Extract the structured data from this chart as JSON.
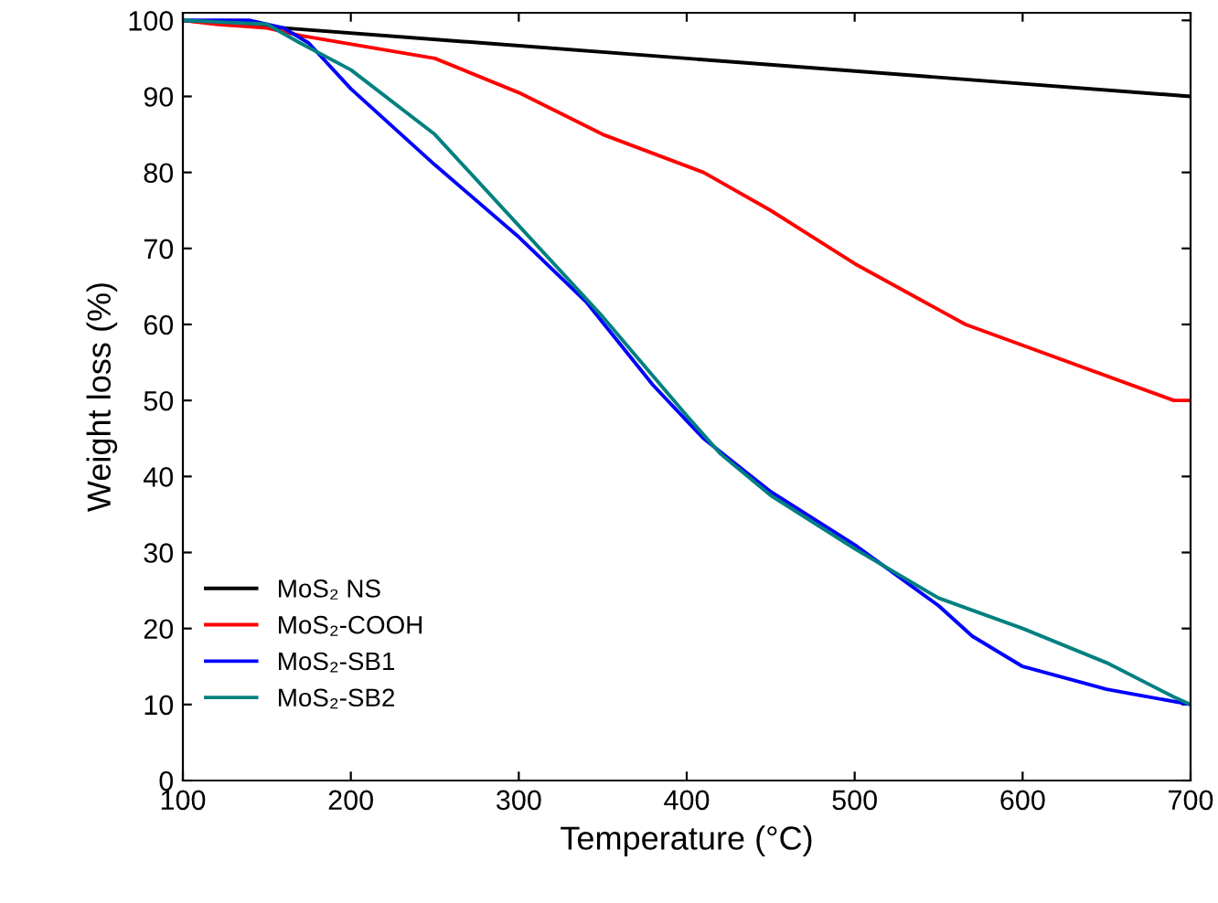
{
  "chart_data": {
    "type": "line",
    "xlabel": "Temperature (°C)",
    "ylabel": "Weight loss (%)",
    "xlim": [
      100,
      700
    ],
    "ylim": [
      0,
      101
    ],
    "xticks": [
      100,
      200,
      300,
      400,
      500,
      600,
      700
    ],
    "yticks": [
      0,
      10,
      20,
      30,
      40,
      50,
      60,
      70,
      80,
      90,
      100
    ],
    "grid": false,
    "legend": "lower left",
    "line_style": "solid",
    "marker": "none",
    "series": [
      {
        "name": "MoS₂ NS",
        "color": "#000000",
        "x": [
          100,
          700
        ],
        "values": [
          100,
          90
        ]
      },
      {
        "name": "MoS₂-COOH",
        "color": "#ff0000",
        "x": [
          100,
          120,
          150,
          170,
          250,
          300,
          350,
          410,
          450,
          500,
          566,
          690,
          700
        ],
        "values": [
          100,
          99.5,
          99,
          98,
          95,
          90.5,
          85,
          80,
          75,
          68,
          60,
          50,
          50
        ]
      },
      {
        "name": "MoS₂-SB1",
        "color": "#0000ff",
        "x": [
          100,
          140,
          160,
          175,
          200,
          250,
          300,
          340,
          380,
          410,
          450,
          500,
          550,
          570,
          600,
          650,
          700
        ],
        "values": [
          100,
          100,
          99,
          97,
          91,
          81,
          71.5,
          63,
          52,
          45,
          38,
          31,
          23,
          19,
          15,
          12,
          10
        ]
      },
      {
        "name": "MoS₂-SB2",
        "color": "#008080",
        "x": [
          100,
          150,
          170,
          200,
          250,
          300,
          350,
          400,
          420,
          450,
          500,
          550,
          600,
          650,
          690,
          700
        ],
        "values": [
          100,
          99.5,
          97,
          93.5,
          85,
          73,
          61,
          48,
          43,
          37.5,
          30.5,
          24,
          20,
          15.5,
          11,
          10
        ]
      }
    ]
  }
}
